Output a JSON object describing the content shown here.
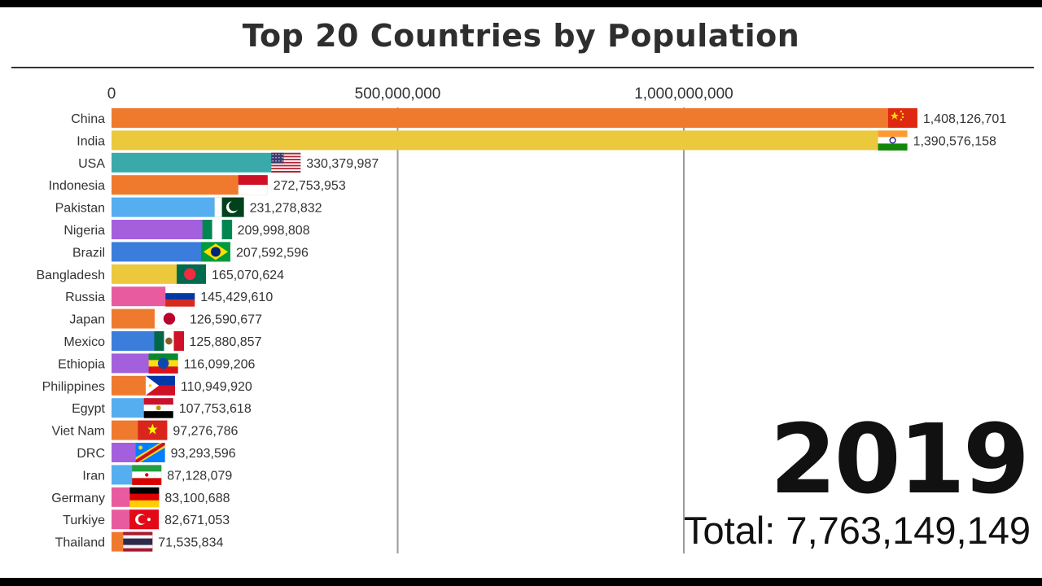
{
  "title": "Top 20 Countries by Population",
  "year": "2019",
  "total_text": "Total: 7,763,149,149",
  "chart_data": {
    "type": "bar",
    "orientation": "horizontal",
    "title": "Top 20 Countries by Population",
    "xlabel": "",
    "ylabel": "",
    "xlim": [
      0,
      1450000000
    ],
    "x_ticks": [
      {
        "value": 0,
        "label": "0"
      },
      {
        "value": 500000000,
        "label": "500,000,000"
      },
      {
        "value": 1000000000,
        "label": "1,000,000,000"
      }
    ],
    "grid": true,
    "bars": [
      {
        "country": "China",
        "value": 1408126701,
        "label": "1,408,126,701",
        "color": "#ef7a2e",
        "flag": "china-flag"
      },
      {
        "country": "India",
        "value": 1390576158,
        "label": "1,390,576,158",
        "color": "#ecc83c",
        "flag": "india-flag"
      },
      {
        "country": "USA",
        "value": 330379987,
        "label": "330,379,987",
        "color": "#3aa9a9",
        "flag": "usa-flag"
      },
      {
        "country": "Indonesia",
        "value": 272753953,
        "label": "272,753,953",
        "color": "#ef7a2e",
        "flag": "indonesia-flag"
      },
      {
        "country": "Pakistan",
        "value": 231278832,
        "label": "231,278,832",
        "color": "#55aef0",
        "flag": "pakistan-flag"
      },
      {
        "country": "Nigeria",
        "value": 209998808,
        "label": "209,998,808",
        "color": "#a45fdc",
        "flag": "nigeria-flag"
      },
      {
        "country": "Brazil",
        "value": 207592596,
        "label": "207,592,596",
        "color": "#3b7ddb",
        "flag": "brazil-flag"
      },
      {
        "country": "Bangladesh",
        "value": 165070624,
        "label": "165,070,624",
        "color": "#ecc83c",
        "flag": "bangladesh-flag"
      },
      {
        "country": "Russia",
        "value": 145429610,
        "label": "145,429,610",
        "color": "#e85c9f",
        "flag": "russia-flag"
      },
      {
        "country": "Japan",
        "value": 126590677,
        "label": "126,590,677",
        "color": "#ef7a2e",
        "flag": "japan-flag"
      },
      {
        "country": "Mexico",
        "value": 125880857,
        "label": "125,880,857",
        "color": "#3b7ddb",
        "flag": "mexico-flag"
      },
      {
        "country": "Ethiopia",
        "value": 116099206,
        "label": "116,099,206",
        "color": "#a45fdc",
        "flag": "ethiopia-flag"
      },
      {
        "country": "Philippines",
        "value": 110949920,
        "label": "110,949,920",
        "color": "#ef7a2e",
        "flag": "philippines-flag"
      },
      {
        "country": "Egypt",
        "value": 107753618,
        "label": "107,753,618",
        "color": "#55aef0",
        "flag": "egypt-flag"
      },
      {
        "country": "Viet Nam",
        "value": 97276786,
        "label": "97,276,786",
        "color": "#ef7a2e",
        "flag": "vietnam-flag"
      },
      {
        "country": "DRC",
        "value": 93293596,
        "label": "93,293,596",
        "color": "#a45fdc",
        "flag": "drc-flag"
      },
      {
        "country": "Iran",
        "value": 87128079,
        "label": "87,128,079",
        "color": "#55aef0",
        "flag": "iran-flag"
      },
      {
        "country": "Germany",
        "value": 83100688,
        "label": "83,100,688",
        "color": "#e85c9f",
        "flag": "germany-flag"
      },
      {
        "country": "Turkiye",
        "value": 82671053,
        "label": "82,671,053",
        "color": "#e85c9f",
        "flag": "turkiye-flag"
      },
      {
        "country": "Thailand",
        "value": 71535834,
        "label": "71,535,834",
        "color": "#ef7a2e",
        "flag": "thailand-flag"
      }
    ]
  }
}
